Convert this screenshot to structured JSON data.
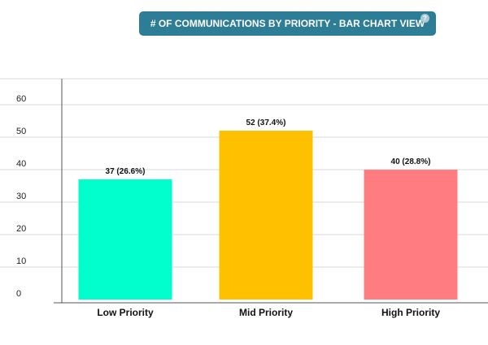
{
  "title": "# OF COMMUNICATIONS BY PRIORITY - BAR CHART VIEW",
  "help_icon_text": "?",
  "colors": {
    "banner": "#2e7d96",
    "grid": "#d9d9d9",
    "axis": "#555555"
  },
  "chart_data": {
    "type": "bar",
    "categories": [
      "Low Priority",
      "Mid Priority",
      "High Priority"
    ],
    "values": [
      37,
      52,
      40
    ],
    "data_labels": [
      "37 (26.6%)",
      "52 (37.4%)",
      "40 (28.8%)"
    ],
    "bar_colors": [
      "#00ffcc",
      "#ffc000",
      "#ff7c80"
    ],
    "ylim": [
      0,
      60
    ],
    "yticks": [
      0,
      10,
      20,
      30,
      40,
      50,
      60
    ],
    "grid": true,
    "legend": "none"
  }
}
